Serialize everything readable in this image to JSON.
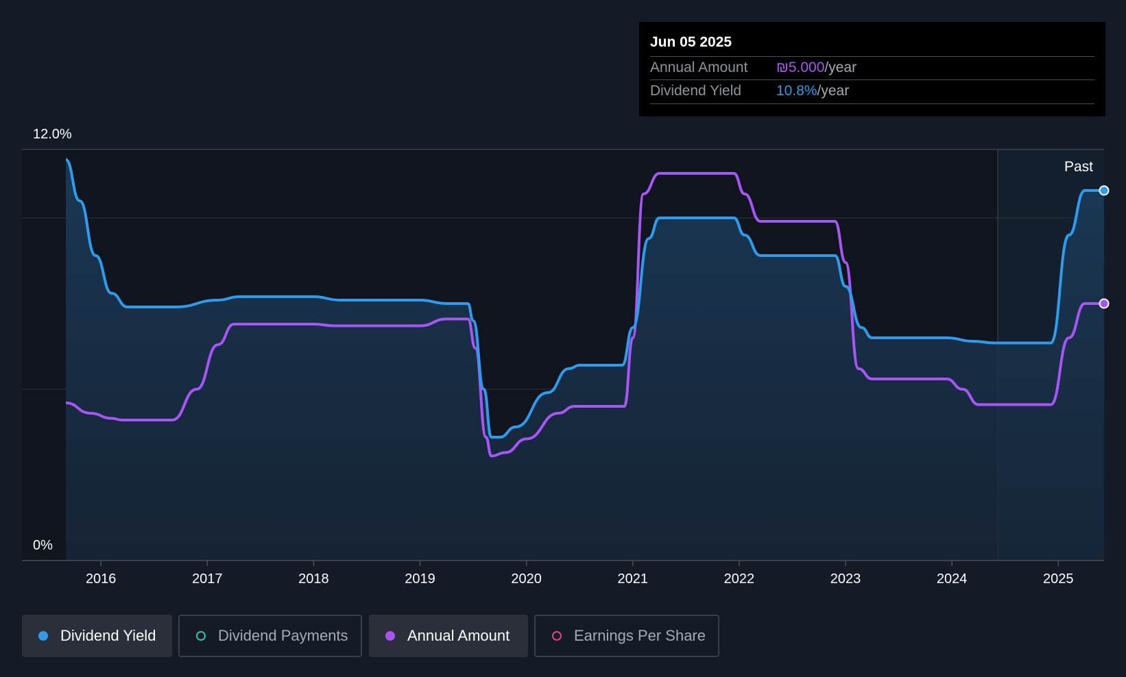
{
  "tooltip": {
    "date": "Jun 05 2025",
    "rows": [
      {
        "label": "Annual Amount",
        "value": "₪5.000",
        "suffix": "/year",
        "color": "#a855f7"
      },
      {
        "label": "Dividend Yield",
        "value": "10.8%",
        "suffix": "/year",
        "color": "#2d9cee"
      }
    ]
  },
  "legend": [
    {
      "label": "Dividend Yield",
      "color": "#2d9cee",
      "style": "filled",
      "active": true
    },
    {
      "label": "Dividend Payments",
      "color": "#2ec4b6",
      "style": "outline",
      "active": false
    },
    {
      "label": "Annual Amount",
      "color": "#a855f7",
      "style": "filled",
      "active": true
    },
    {
      "label": "Earnings Per Share",
      "color": "#e0457b",
      "style": "outline",
      "active": false
    }
  ],
  "chart_data": {
    "type": "line",
    "y_top_label": "12.0%",
    "y_bottom_label": "0%",
    "past_label": "Past",
    "ylim": [
      0,
      12
    ],
    "xlim": [
      2015.67,
      2025.43
    ],
    "past_region_start": 2024.43,
    "x_ticks": [
      "2016",
      "2017",
      "2018",
      "2019",
      "2020",
      "2021",
      "2022",
      "2023",
      "2024",
      "2025"
    ],
    "grid": "horizontal",
    "series": [
      {
        "name": "Dividend Yield",
        "color": "#2d9cee",
        "unit": "%",
        "points": [
          [
            2015.67,
            11.7
          ],
          [
            2015.8,
            10.5
          ],
          [
            2015.95,
            8.9
          ],
          [
            2016.1,
            7.8
          ],
          [
            2016.25,
            7.4
          ],
          [
            2016.7,
            7.4
          ],
          [
            2017.1,
            7.6
          ],
          [
            2017.3,
            7.7
          ],
          [
            2018.0,
            7.7
          ],
          [
            2018.25,
            7.6
          ],
          [
            2019.0,
            7.6
          ],
          [
            2019.25,
            7.5
          ],
          [
            2019.45,
            7.5
          ],
          [
            2019.5,
            7.0
          ],
          [
            2019.6,
            5.0
          ],
          [
            2019.67,
            3.6
          ],
          [
            2019.75,
            3.6
          ],
          [
            2019.9,
            3.9
          ],
          [
            2020.2,
            4.9
          ],
          [
            2020.4,
            5.6
          ],
          [
            2020.5,
            5.7
          ],
          [
            2020.9,
            5.7
          ],
          [
            2021.0,
            6.8
          ],
          [
            2021.15,
            9.4
          ],
          [
            2021.25,
            10.0
          ],
          [
            2021.95,
            10.0
          ],
          [
            2022.05,
            9.5
          ],
          [
            2022.2,
            8.9
          ],
          [
            2022.9,
            8.9
          ],
          [
            2023.0,
            8.0
          ],
          [
            2023.15,
            6.8
          ],
          [
            2023.25,
            6.5
          ],
          [
            2023.95,
            6.5
          ],
          [
            2024.2,
            6.4
          ],
          [
            2024.4,
            6.35
          ],
          [
            2024.93,
            6.35
          ],
          [
            2025.1,
            9.5
          ],
          [
            2025.25,
            10.8
          ],
          [
            2025.43,
            10.8
          ]
        ]
      },
      {
        "name": "Annual Amount",
        "color": "#a855f7",
        "unit": "relative",
        "points": [
          [
            2015.67,
            4.6
          ],
          [
            2015.9,
            4.3
          ],
          [
            2016.1,
            4.15
          ],
          [
            2016.2,
            4.1
          ],
          [
            2016.67,
            4.1
          ],
          [
            2016.9,
            5.0
          ],
          [
            2017.1,
            6.3
          ],
          [
            2017.25,
            6.9
          ],
          [
            2018.0,
            6.9
          ],
          [
            2018.2,
            6.85
          ],
          [
            2019.0,
            6.85
          ],
          [
            2019.25,
            7.05
          ],
          [
            2019.45,
            7.05
          ],
          [
            2019.52,
            6.2
          ],
          [
            2019.62,
            3.6
          ],
          [
            2019.67,
            3.05
          ],
          [
            2019.8,
            3.15
          ],
          [
            2020.0,
            3.55
          ],
          [
            2020.3,
            4.3
          ],
          [
            2020.45,
            4.5
          ],
          [
            2020.92,
            4.5
          ],
          [
            2021.0,
            6.5
          ],
          [
            2021.1,
            10.7
          ],
          [
            2021.25,
            11.3
          ],
          [
            2021.95,
            11.3
          ],
          [
            2022.05,
            10.7
          ],
          [
            2022.2,
            9.9
          ],
          [
            2022.9,
            9.9
          ],
          [
            2023.0,
            8.7
          ],
          [
            2023.12,
            5.6
          ],
          [
            2023.25,
            5.3
          ],
          [
            2023.95,
            5.3
          ],
          [
            2024.1,
            5.0
          ],
          [
            2024.25,
            4.55
          ],
          [
            2024.93,
            4.55
          ],
          [
            2025.1,
            6.5
          ],
          [
            2025.25,
            7.5
          ],
          [
            2025.43,
            7.5
          ]
        ]
      }
    ]
  }
}
